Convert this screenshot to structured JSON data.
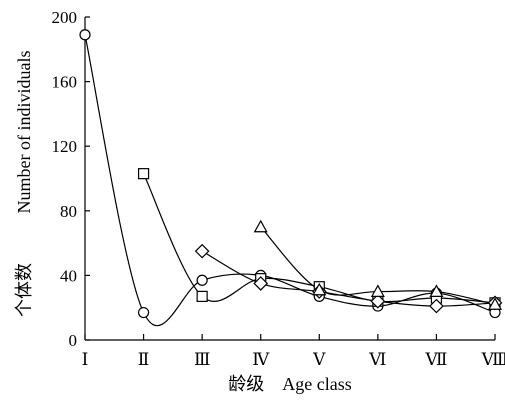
{
  "chart_data": {
    "type": "line",
    "title": "",
    "xlabel": "龄级　Age class",
    "ylabel_cn": "个体数",
    "ylabel_en": "Number of individuals",
    "ylim": [
      0,
      200
    ],
    "yticks": [
      0,
      40,
      80,
      120,
      160,
      200
    ],
    "categories": [
      "Ⅰ",
      "Ⅱ",
      "Ⅲ",
      "Ⅳ",
      "Ⅴ",
      "Ⅵ",
      "Ⅶ",
      "Ⅷ"
    ],
    "grid": false,
    "legend": "none",
    "series": [
      {
        "marker": "circle",
        "values": [
          189,
          17,
          37,
          40,
          27,
          21,
          29,
          17
        ]
      },
      {
        "marker": "square",
        "values": [
          null,
          103,
          27,
          38,
          33,
          24,
          26,
          23
        ]
      },
      {
        "marker": "diamond",
        "values": [
          null,
          null,
          55,
          35,
          30,
          24,
          21,
          23
        ]
      },
      {
        "marker": "triangle",
        "values": [
          null,
          null,
          null,
          70,
          31,
          30,
          30,
          22
        ]
      }
    ]
  }
}
